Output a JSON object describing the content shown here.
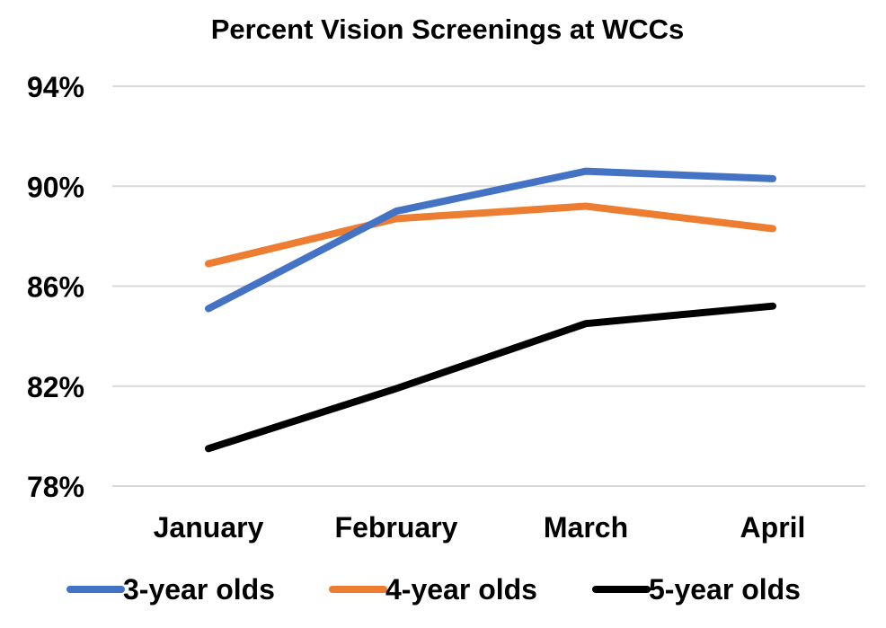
{
  "chart_data": {
    "type": "line",
    "title": "Percent Vision Screenings at WCCs",
    "categories": [
      "January",
      "February",
      "March",
      "April"
    ],
    "ylim": [
      78,
      94
    ],
    "yticks": [
      78,
      82,
      86,
      90,
      94
    ],
    "ytick_labels": [
      "78%",
      "82%",
      "86%",
      "90%",
      "94%"
    ],
    "grid": true,
    "legend_position": "bottom",
    "series": [
      {
        "name": "3-year olds",
        "color": "#4472c4",
        "values": [
          85.1,
          89.0,
          90.6,
          90.3
        ]
      },
      {
        "name": "4-year olds",
        "color": "#ed7d31",
        "values": [
          86.9,
          88.7,
          89.2,
          88.3
        ]
      },
      {
        "name": "5-year olds",
        "color": "#000000",
        "values": [
          79.5,
          81.9,
          84.5,
          85.2
        ]
      }
    ]
  }
}
